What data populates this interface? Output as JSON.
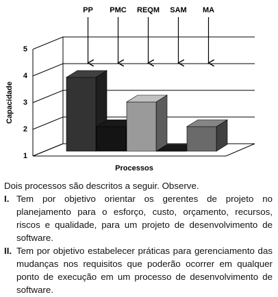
{
  "chart_data": {
    "type": "bar3d",
    "ylabel": "Capacidade",
    "xlabel": "Processos",
    "categories": [
      "PP",
      "PMC",
      "REQM",
      "SAM",
      "MA"
    ],
    "values": [
      4,
      2,
      3,
      1,
      2
    ],
    "colors": [
      "#333333",
      "#141414",
      "#9a9a9a",
      "#141414",
      "#6a6a6a"
    ],
    "ylim": [
      1,
      5
    ],
    "yticks": [
      1,
      2,
      3,
      4,
      5
    ],
    "grid": true
  },
  "question": {
    "intro": "Dois processos são descritos a seguir. Observe.",
    "items": [
      {
        "marker": "I.",
        "text": "Tem por objetivo orientar os gerentes de projeto no planejamento para o esforço, custo, orçamento, recursos, riscos e qualidade, para um projeto de desenvolvimento de software."
      },
      {
        "marker": "II.",
        "text": "Tem por objetivo estabelecer práticas para gerenciamento das mudanças nos requisitos que poderão ocorrer em qualquer ponto de execução em um processo de desenvolvimento de software."
      }
    ]
  }
}
